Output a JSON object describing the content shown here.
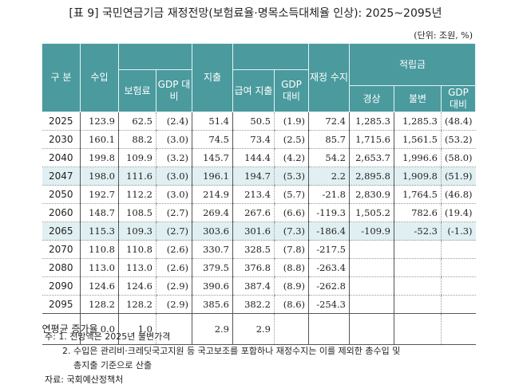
{
  "title": "[표 9] 국민연금기금 재정전망(보험료율·명목소득대체율 인상): 2025~2095년",
  "unit": "(단위: 조원, %)",
  "headers": {
    "gubun": "구 분",
    "income": "수입",
    "premium": "보험료",
    "gdp": "GDP 대비",
    "expend": "지출",
    "benefit": "급여 지출",
    "balance": "재정 수지",
    "reserve": "적립금",
    "nominal": "경상",
    "constant": "불변"
  },
  "rows": [
    [
      "2025",
      "123.9",
      "62.5",
      "(2.4)",
      "51.4",
      "50.5",
      "(1.9)",
      "72.4",
      "1,285.3",
      "1,285.3",
      "(48.4)"
    ],
    [
      "2030",
      "160.1",
      "88.2",
      "(3.0)",
      "74.5",
      "73.4",
      "(2.5)",
      "85.7",
      "1,715.6",
      "1,561.5",
      "(53.2)"
    ],
    [
      "2040",
      "199.8",
      "109.9",
      "(3.2)",
      "145.7",
      "144.4",
      "(4.2)",
      "54.2",
      "2,653.7",
      "1,996.6",
      "(58.0)"
    ],
    [
      "2047",
      "198.0",
      "111.6",
      "(3.0)",
      "196.1",
      "194.7",
      "(5.3)",
      "2.2",
      "2,895.8",
      "1,909.8",
      "(51.9)"
    ],
    [
      "2050",
      "192.7",
      "112.2",
      "(3.0)",
      "214.9",
      "213.4",
      "(5.7)",
      "-21.8",
      "2,830.9",
      "1,764.5",
      "(46.8)"
    ],
    [
      "2060",
      "148.7",
      "108.5",
      "(2.7)",
      "269.4",
      "267.6",
      "(6.6)",
      "-119.3",
      "1,505.2",
      "782.6",
      "(19.4)"
    ],
    [
      "2065",
      "115.3",
      "109.3",
      "(2.7)",
      "303.6",
      "301.6",
      "(7.3)",
      "-186.4",
      "-109.9",
      "-52.3",
      "(-1.3)"
    ],
    [
      "2070",
      "110.8",
      "110.8",
      "(2.6)",
      "330.7",
      "328.5",
      "(7.8)",
      "-217.5",
      "",
      "",
      ""
    ],
    [
      "2080",
      "113.0",
      "113.0",
      "(2.6)",
      "379.5",
      "376.8",
      "(8.8)",
      "-263.4",
      "",
      "",
      ""
    ],
    [
      "2090",
      "124.6",
      "124.6",
      "(2.9)",
      "390.6",
      "387.4",
      "(8.9)",
      "-262.8",
      "",
      "",
      ""
    ],
    [
      "2095",
      "128.2",
      "128.2",
      "(2.9)",
      "385.6",
      "382.2",
      "(8.6)",
      "-254.3",
      "",
      "",
      ""
    ],
    [
      "연평균 증가율",
      "0.0",
      "1.0",
      "",
      "2.9",
      "2.9",
      "",
      "",
      "",
      "",
      ""
    ]
  ],
  "highlight_rows": [
    "2047",
    "2065"
  ],
  "notes": [
    "주: 1. 전망액은 2025년 불변가격",
    "2. 수입은 관리비·크레딧국고지원 등 국고보조를 포함하나 재정수지는 이를 제외한 총수입 및",
    "총지출 기준으로 산출",
    "자료: 국회예산정책처"
  ],
  "colors": {
    "header": "#4a9a9e",
    "highlight": "#e0f0f2"
  }
}
